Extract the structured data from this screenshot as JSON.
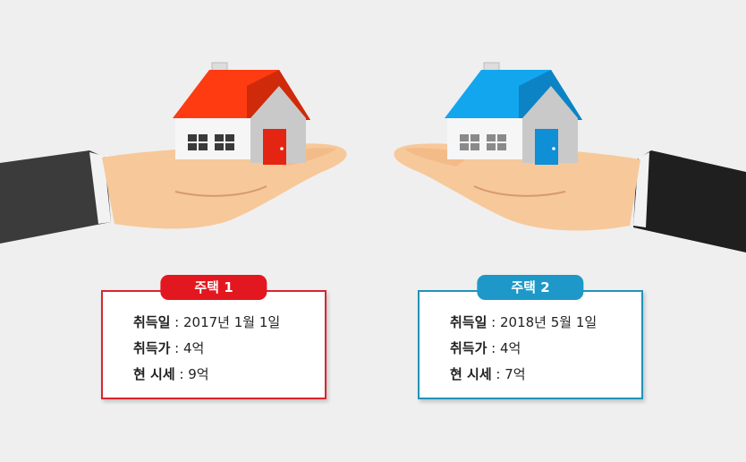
{
  "colors": {
    "house1_roof": "#ff3b12",
    "house2_roof": "#12a6ef",
    "card1_border": "#d8262e",
    "card2_border": "#2193b8",
    "badge1": "#e3171f",
    "badge2": "#1d98c8"
  },
  "house1": {
    "badge": "주택 1",
    "rows": [
      {
        "label": "취득일",
        "value": "2017년 1월 1일"
      },
      {
        "label": "취득가",
        "value": "4억"
      },
      {
        "label": "현 시세",
        "value": "9억"
      }
    ]
  },
  "house2": {
    "badge": "주택 2",
    "rows": [
      {
        "label": "취득일",
        "value": "2018년 5월 1일"
      },
      {
        "label": "취득가",
        "value": "4억"
      },
      {
        "label": "현 시세",
        "value": "7억"
      }
    ]
  },
  "separator": " : "
}
